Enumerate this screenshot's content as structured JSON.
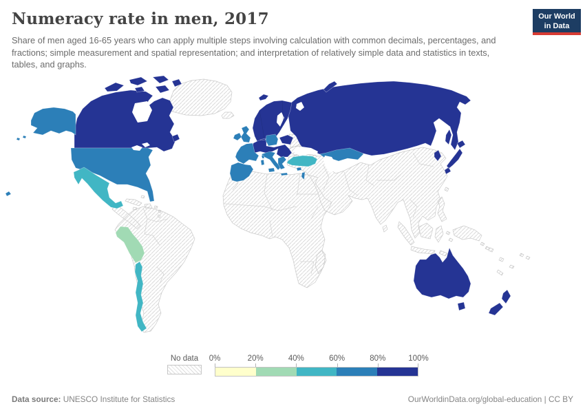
{
  "header": {
    "title": "Numeracy rate in men, 2017",
    "subtitle": "Share of men aged 16-65 years who can apply multiple steps involving calculation with common decimals, percentages, and fractions; simple measurement and spatial representation; and interpretation of relatively simple data and statistics in texts, tables, and graphs."
  },
  "logo": {
    "line1": "Our World",
    "line2": "in Data",
    "bg_color": "#1d3d63",
    "accent_color": "#d73b33"
  },
  "legend": {
    "no_data_label": "No data",
    "tick_labels": [
      "0%",
      "20%",
      "40%",
      "60%",
      "80%",
      "100%"
    ]
  },
  "footer": {
    "source_label": "Data source:",
    "source_value": " UNESCO Institute for Statistics",
    "right_text": "OurWorldinData.org/global-education | CC BY"
  },
  "chart_data": {
    "type": "choropleth",
    "title": "Numeracy rate in men, 2017",
    "unit": "%",
    "legend_position": "bottom",
    "color_scale": {
      "no_data": {
        "label": "No data",
        "style": "hatched"
      },
      "bins": [
        {
          "key": "b1",
          "range": "0-20%",
          "color": "#ffffcc"
        },
        {
          "key": "b2",
          "range": "20-40%",
          "color": "#a1dab4"
        },
        {
          "key": "b3",
          "range": "40-60%",
          "color": "#41b6c4"
        },
        {
          "key": "b4",
          "range": "60-80%",
          "color": "#2c7fb8"
        },
        {
          "key": "b5",
          "range": "80-100%",
          "color": "#253494"
        }
      ]
    },
    "regions": [
      {
        "name": "Canada",
        "bin": "80-100%"
      },
      {
        "name": "United States (incl. Alaska, Hawaii)",
        "bin": "60-80%"
      },
      {
        "name": "Mexico",
        "bin": "40-60%"
      },
      {
        "name": "Ecuador",
        "bin": "20-40%"
      },
      {
        "name": "Peru",
        "bin": "20-40%"
      },
      {
        "name": "Chile",
        "bin": "40-60%"
      },
      {
        "name": "United Kingdom",
        "bin": "60-80%"
      },
      {
        "name": "Ireland",
        "bin": "60-80%"
      },
      {
        "name": "France",
        "bin": "60-80%"
      },
      {
        "name": "Spain and Portugal",
        "bin": "60-80%"
      },
      {
        "name": "Italy",
        "bin": "60-80%"
      },
      {
        "name": "Poland",
        "bin": "60-80%"
      },
      {
        "name": "Greece",
        "bin": "60-80%"
      },
      {
        "name": "Cyprus",
        "bin": "60-80%"
      },
      {
        "name": "Israel",
        "bin": "60-80%"
      },
      {
        "name": "Turkey",
        "bin": "40-60%"
      },
      {
        "name": "Kazakhstan",
        "bin": "60-80%"
      },
      {
        "name": "Germany and Central Europe",
        "bin": "80-100%"
      },
      {
        "name": "Scandinavia and Finland",
        "bin": "80-100%"
      },
      {
        "name": "Baltic states",
        "bin": "80-100%"
      },
      {
        "name": "Russia",
        "bin": "80-100%"
      },
      {
        "name": "Japan",
        "bin": "80-100%"
      },
      {
        "name": "South Korea",
        "bin": "80-100%"
      },
      {
        "name": "Australia",
        "bin": "80-100%"
      },
      {
        "name": "New Zealand",
        "bin": "80-100%"
      },
      {
        "name": "Rest of world (Africa, Middle East, China, India, Southeast Asia, Greenland, most of South America)",
        "bin": "No data"
      }
    ]
  }
}
